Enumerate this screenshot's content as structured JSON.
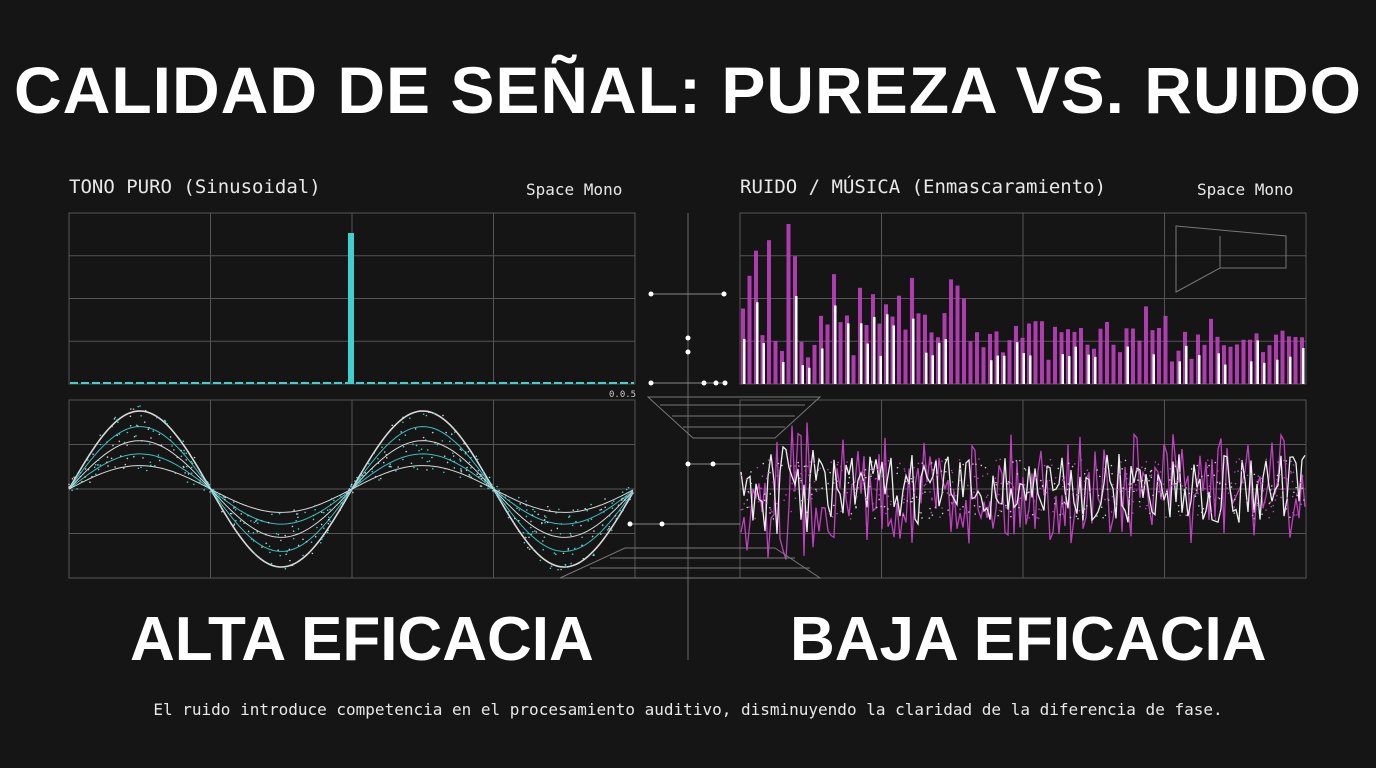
{
  "title": "CALIDAD DE SEÑAL: PUREZA VS. RUIDO",
  "left_panel": {
    "title": "TONO PURO (Sinusoidal)",
    "font_label": "Space Mono",
    "verdict": "ALTA EFICACIA",
    "color": "#3fd0d0"
  },
  "right_panel": {
    "title": "RUIDO / MÚSICA (Enmascaramiento)",
    "font_label": "Space Mono",
    "verdict": "BAJA EFICACIA",
    "color": "#c040c0"
  },
  "small_label": "0.0.5",
  "caption": "El ruido introduce competencia en el procesamiento auditivo, disminuyendo la claridad de la diferencia de fase."
}
